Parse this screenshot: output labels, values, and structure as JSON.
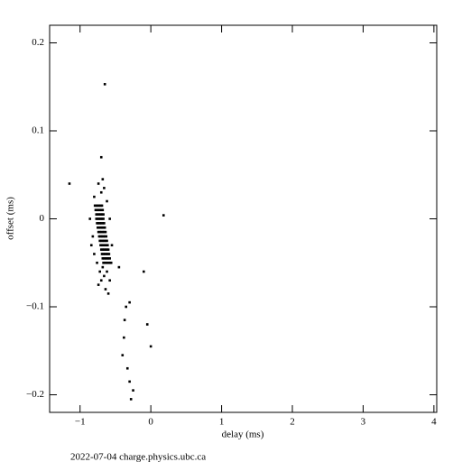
{
  "chart_data": {
    "type": "scatter",
    "x_label": "delay (ms)",
    "y_label": "offset (ms)",
    "footer": "2022-07-04 charge.physics.ubc.ca",
    "color": "#000000",
    "xlim": [
      -1.43,
      4.04
    ],
    "ylim": [
      -0.22,
      0.22
    ],
    "xticks": [
      {
        "value": -1,
        "label": "−1"
      },
      0,
      1,
      2,
      3,
      4
    ],
    "yticks": [
      {
        "value": -0.2,
        "label": "−0.2"
      },
      {
        "value": -0.1,
        "label": "−0.1"
      },
      0,
      0.1,
      0.2
    ],
    "x": [
      -0.79,
      -0.77,
      -0.75,
      -0.73,
      -0.71,
      -0.69,
      -0.78,
      -0.76,
      -0.74,
      -0.72,
      -0.7,
      -0.68,
      -0.77,
      -0.75,
      -0.73,
      -0.71,
      -0.69,
      -0.67,
      -0.77,
      -0.75,
      -0.73,
      -0.71,
      -0.69,
      -0.67,
      -0.76,
      -0.74,
      -0.72,
      -0.7,
      -0.68,
      -0.66,
      -0.75,
      -0.73,
      -0.71,
      -0.69,
      -0.67,
      -0.65,
      -0.74,
      -0.72,
      -0.7,
      -0.68,
      -0.66,
      -0.64,
      -0.73,
      -0.71,
      -0.69,
      -0.67,
      -0.65,
      -0.63,
      -0.72,
      -0.7,
      -0.68,
      -0.66,
      -0.64,
      -0.62,
      -0.71,
      -0.69,
      -0.67,
      -0.65,
      -0.63,
      -0.61,
      -0.7,
      -0.68,
      -0.66,
      -0.64,
      -0.62,
      -0.6,
      -0.69,
      -0.67,
      -0.65,
      -0.63,
      -0.61,
      -0.59,
      -0.68,
      -0.66,
      -0.64,
      -0.62,
      -0.6,
      -0.58,
      -0.67,
      -0.65,
      -0.63,
      -0.61,
      -0.59,
      -0.57,
      -0.82,
      -0.84,
      -0.8,
      -0.7,
      -0.66,
      -0.74,
      -0.68,
      -0.7,
      -0.62,
      -0.66,
      -0.7,
      -0.74,
      -0.58,
      -0.64,
      -0.6,
      -0.76,
      -0.8,
      -0.56,
      -0.55,
      -0.58,
      -0.86,
      -0.62,
      -0.72,
      -0.68,
      -0.65,
      0.18,
      -1.15,
      -0.45,
      -0.1,
      -0.3,
      -0.35,
      -0.37,
      -0.05,
      -0.38,
      0.0,
      -0.4,
      -0.33,
      -0.3,
      -0.28,
      -0.25
    ],
    "y": [
      0.015,
      0.015,
      0.015,
      0.015,
      0.015,
      0.015,
      0.01,
      0.01,
      0.01,
      0.01,
      0.01,
      0.01,
      0.005,
      0.005,
      0.005,
      0.005,
      0.005,
      0.005,
      0,
      0,
      0,
      0,
      0,
      0,
      -0.005,
      -0.005,
      -0.005,
      -0.005,
      -0.005,
      -0.005,
      -0.01,
      -0.01,
      -0.01,
      -0.01,
      -0.01,
      -0.01,
      -0.015,
      -0.015,
      -0.015,
      -0.015,
      -0.015,
      -0.015,
      -0.02,
      -0.02,
      -0.02,
      -0.02,
      -0.02,
      -0.02,
      -0.025,
      -0.025,
      -0.025,
      -0.025,
      -0.025,
      -0.025,
      -0.03,
      -0.03,
      -0.03,
      -0.03,
      -0.03,
      -0.03,
      -0.035,
      -0.035,
      -0.035,
      -0.035,
      -0.035,
      -0.035,
      -0.04,
      -0.04,
      -0.04,
      -0.04,
      -0.04,
      -0.04,
      -0.045,
      -0.045,
      -0.045,
      -0.045,
      -0.045,
      -0.045,
      -0.05,
      -0.05,
      -0.05,
      -0.05,
      -0.05,
      -0.05,
      -0.02,
      -0.03,
      0.025,
      0.03,
      0.035,
      0.04,
      0.045,
      0.07,
      -0.06,
      -0.065,
      -0.07,
      -0.075,
      -0.07,
      -0.08,
      -0.085,
      -0.05,
      -0.04,
      -0.05,
      -0.03,
      0.0,
      0.0,
      0.02,
      -0.06,
      -0.055,
      0.153,
      0.004,
      0.04,
      -0.055,
      -0.06,
      -0.095,
      -0.1,
      -0.115,
      -0.12,
      -0.135,
      -0.145,
      -0.155,
      -0.17,
      -0.185,
      -0.205,
      -0.195
    ]
  }
}
